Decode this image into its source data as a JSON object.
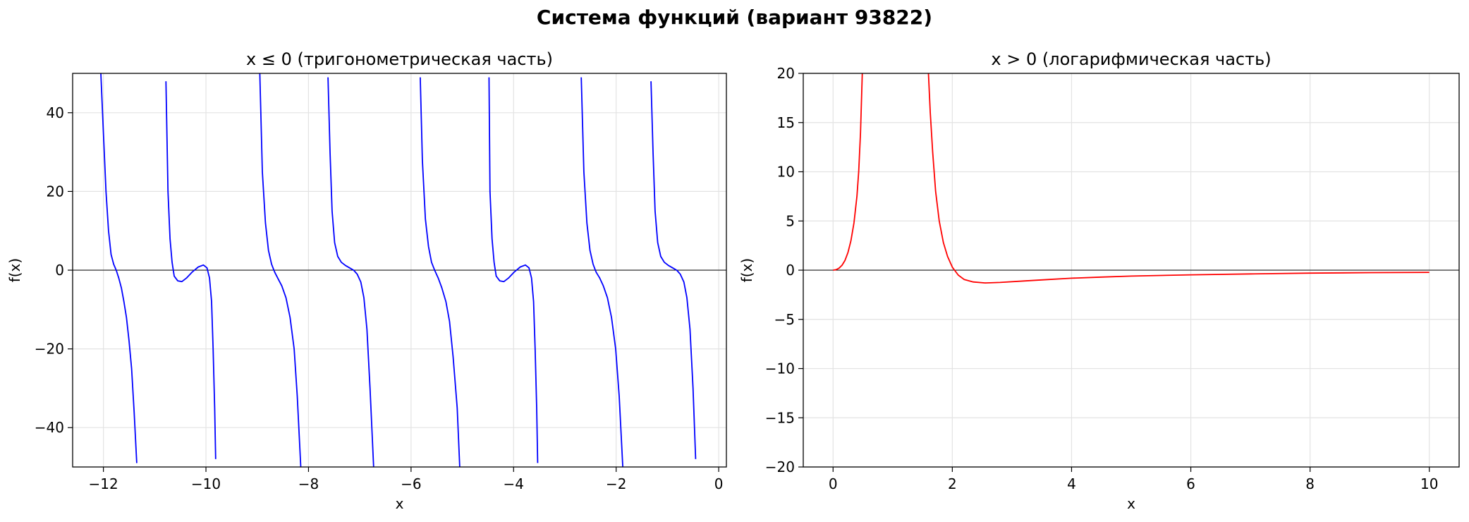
{
  "figure": {
    "title": "Система функций (вариант 93822)"
  },
  "chart_data": [
    {
      "type": "line",
      "title": "x ≤ 0 (тригонометрическая часть)",
      "xlabel": "x",
      "ylabel": "f(x)",
      "xlim": [
        -12.6,
        0.15
      ],
      "ylim": [
        -50,
        50
      ],
      "xticks": [
        -12,
        -10,
        -8,
        -6,
        -4,
        -2,
        0
      ],
      "xtick_labels": [
        "−12",
        "−10",
        "−8",
        "−6",
        "−4",
        "−2",
        "0"
      ],
      "yticks": [
        -40,
        -20,
        0,
        20,
        40
      ],
      "ytick_labels": [
        "−40",
        "−20",
        "0",
        "20",
        "40"
      ],
      "grid": true,
      "zero_line": true,
      "series": [
        {
          "color": "#0000ff",
          "segments": [
            [
              [
                -12.05,
                50
              ],
              [
                -12.0,
                35
              ],
              [
                -11.95,
                20
              ],
              [
                -11.9,
                10
              ],
              [
                -11.85,
                4
              ],
              [
                -11.8,
                1.5
              ],
              [
                -11.75,
                0
              ],
              [
                -11.7,
                -2
              ],
              [
                -11.65,
                -4.5
              ],
              [
                -11.6,
                -8
              ],
              [
                -11.55,
                -12
              ],
              [
                -11.5,
                -18
              ],
              [
                -11.45,
                -25
              ],
              [
                -11.4,
                -36
              ],
              [
                -11.35,
                -49
              ]
            ],
            [
              [
                -10.78,
                48
              ],
              [
                -10.74,
                20
              ],
              [
                -10.7,
                8
              ],
              [
                -10.66,
                2
              ],
              [
                -10.62,
                -1.5
              ],
              [
                -10.55,
                -2.7
              ],
              [
                -10.47,
                -2.9
              ],
              [
                -10.38,
                -2
              ],
              [
                -10.27,
                -0.5
              ],
              [
                -10.15,
                0.8
              ],
              [
                -10.05,
                1.3
              ],
              [
                -9.98,
                0.6
              ],
              [
                -9.93,
                -2
              ],
              [
                -9.89,
                -8
              ],
              [
                -9.86,
                -20
              ],
              [
                -9.83,
                -35
              ],
              [
                -9.81,
                -48
              ]
            ],
            [
              [
                -8.95,
                50
              ],
              [
                -8.9,
                25
              ],
              [
                -8.84,
                12
              ],
              [
                -8.78,
                5
              ],
              [
                -8.72,
                1.5
              ],
              [
                -8.66,
                -0.5
              ],
              [
                -8.6,
                -2
              ],
              [
                -8.52,
                -4
              ],
              [
                -8.44,
                -7
              ],
              [
                -8.36,
                -12
              ],
              [
                -8.28,
                -20
              ],
              [
                -8.22,
                -32
              ],
              [
                -8.15,
                -50
              ]
            ],
            [
              [
                -7.62,
                49
              ],
              [
                -7.58,
                30
              ],
              [
                -7.54,
                15
              ],
              [
                -7.49,
                7
              ],
              [
                -7.43,
                3.5
              ],
              [
                -7.36,
                2
              ],
              [
                -7.28,
                1.2
              ],
              [
                -7.2,
                0.6
              ],
              [
                -7.12,
                0
              ],
              [
                -7.05,
                -1
              ],
              [
                -6.98,
                -3
              ],
              [
                -6.92,
                -7
              ],
              [
                -6.86,
                -15
              ],
              [
                -6.8,
                -30
              ],
              [
                -6.73,
                -50
              ]
            ],
            [
              [
                -5.82,
                49
              ],
              [
                -5.78,
                28
              ],
              [
                -5.72,
                13
              ],
              [
                -5.66,
                6
              ],
              [
                -5.6,
                2
              ],
              [
                -5.54,
                0
              ],
              [
                -5.47,
                -2
              ],
              [
                -5.4,
                -4.5
              ],
              [
                -5.32,
                -8
              ],
              [
                -5.25,
                -13
              ],
              [
                -5.18,
                -22
              ],
              [
                -5.1,
                -35
              ],
              [
                -5.05,
                -50
              ]
            ],
            [
              [
                -4.48,
                49
              ],
              [
                -4.46,
                20
              ],
              [
                -4.42,
                8
              ],
              [
                -4.38,
                2
              ],
              [
                -4.34,
                -1.5
              ],
              [
                -4.27,
                -2.7
              ],
              [
                -4.19,
                -2.9
              ],
              [
                -4.1,
                -2
              ],
              [
                -3.99,
                -0.5
              ],
              [
                -3.87,
                0.8
              ],
              [
                -3.77,
                1.3
              ],
              [
                -3.7,
                0.6
              ],
              [
                -3.65,
                -2
              ],
              [
                -3.61,
                -8
              ],
              [
                -3.58,
                -20
              ],
              [
                -3.55,
                -35
              ],
              [
                -3.53,
                -49
              ]
            ],
            [
              [
                -2.68,
                49
              ],
              [
                -2.63,
                25
              ],
              [
                -2.57,
                12
              ],
              [
                -2.51,
                5
              ],
              [
                -2.45,
                1.5
              ],
              [
                -2.39,
                -0.5
              ],
              [
                -2.32,
                -2
              ],
              [
                -2.25,
                -4
              ],
              [
                -2.17,
                -7
              ],
              [
                -2.09,
                -12
              ],
              [
                -2.01,
                -20
              ],
              [
                -1.94,
                -32
              ],
              [
                -1.87,
                -50
              ]
            ],
            [
              [
                -1.32,
                48
              ],
              [
                -1.28,
                30
              ],
              [
                -1.24,
                15
              ],
              [
                -1.19,
                7
              ],
              [
                -1.13,
                3.5
              ],
              [
                -1.06,
                2
              ],
              [
                -0.98,
                1.2
              ],
              [
                -0.9,
                0.6
              ],
              [
                -0.82,
                0
              ],
              [
                -0.75,
                -1
              ],
              [
                -0.68,
                -3
              ],
              [
                -0.62,
                -7
              ],
              [
                -0.56,
                -15
              ],
              [
                -0.5,
                -30
              ],
              [
                -0.45,
                -48
              ]
            ]
          ]
        }
      ]
    },
    {
      "type": "line",
      "title": "x > 0 (логарифмическая часть)",
      "xlabel": "x",
      "ylabel": "f(x)",
      "xlim": [
        -0.5,
        10.5
      ],
      "ylim": [
        -20,
        20
      ],
      "xticks": [
        0,
        2,
        4,
        6,
        8,
        10
      ],
      "xtick_labels": [
        "0",
        "2",
        "4",
        "6",
        "8",
        "10"
      ],
      "yticks": [
        -20,
        -15,
        -10,
        -5,
        0,
        5,
        10,
        15,
        20
      ],
      "ytick_labels": [
        "−20",
        "−15",
        "−10",
        "−5",
        "0",
        "5",
        "10",
        "15",
        "20"
      ],
      "grid": true,
      "zero_line": true,
      "series": [
        {
          "color": "#ff0000",
          "segments": [
            [
              [
                0.0,
                0.0
              ],
              [
                0.05,
                0.05
              ],
              [
                0.1,
                0.2
              ],
              [
                0.15,
                0.5
              ],
              [
                0.2,
                1.0
              ],
              [
                0.25,
                1.8
              ],
              [
                0.3,
                3.0
              ],
              [
                0.35,
                4.8
              ],
              [
                0.4,
                7.5
              ],
              [
                0.43,
                10
              ],
              [
                0.46,
                14
              ],
              [
                0.49,
                20
              ]
            ],
            [
              [
                1.6,
                20
              ],
              [
                1.63,
                16
              ],
              [
                1.67,
                12
              ],
              [
                1.72,
                8
              ],
              [
                1.78,
                5
              ],
              [
                1.85,
                2.8
              ],
              [
                1.92,
                1.4
              ],
              [
                2.0,
                0.3
              ],
              [
                2.1,
                -0.5
              ],
              [
                2.2,
                -0.95
              ],
              [
                2.35,
                -1.2
              ],
              [
                2.55,
                -1.3
              ],
              [
                2.8,
                -1.25
              ],
              [
                3.2,
                -1.1
              ],
              [
                3.6,
                -0.95
              ],
              [
                4.0,
                -0.82
              ],
              [
                4.5,
                -0.7
              ],
              [
                5.0,
                -0.6
              ],
              [
                6.0,
                -0.47
              ],
              [
                7.0,
                -0.38
              ],
              [
                8.0,
                -0.3
              ],
              [
                9.0,
                -0.25
              ],
              [
                10.0,
                -0.22
              ]
            ]
          ]
        }
      ]
    }
  ]
}
